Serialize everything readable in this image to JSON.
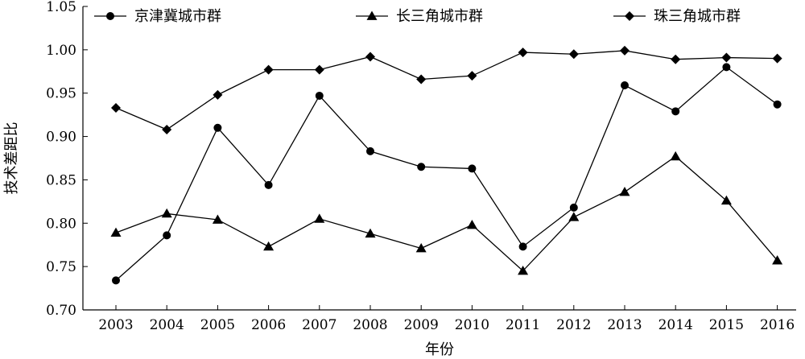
{
  "chart_data": {
    "type": "line",
    "title": "",
    "xlabel": "年份",
    "ylabel": "技术差距比",
    "x": [
      "2003",
      "2004",
      "2005",
      "2006",
      "2007",
      "2008",
      "2009",
      "2010",
      "2011",
      "2012",
      "2013",
      "2014",
      "2015",
      "2016"
    ],
    "ylim": [
      0.7,
      1.05
    ],
    "yticks": [
      "0.70",
      "0.75",
      "0.80",
      "0.85",
      "0.90",
      "0.95",
      "1.00",
      "1.05"
    ],
    "grid": false,
    "legend": "top",
    "series": [
      {
        "name": "京津冀城市群",
        "marker": "circle",
        "values": [
          0.734,
          0.786,
          0.91,
          0.844,
          0.947,
          0.883,
          0.865,
          0.863,
          0.773,
          0.818,
          0.959,
          0.929,
          0.98,
          0.937
        ]
      },
      {
        "name": "长三角城市群",
        "marker": "triangle",
        "values": [
          0.789,
          0.811,
          0.804,
          0.773,
          0.805,
          0.788,
          0.771,
          0.798,
          0.745,
          0.807,
          0.836,
          0.877,
          0.826,
          0.757
        ]
      },
      {
        "name": "珠三角城市群",
        "marker": "diamond",
        "values": [
          0.933,
          0.908,
          0.948,
          0.977,
          0.977,
          0.992,
          0.966,
          0.97,
          0.997,
          0.995,
          0.999,
          0.989,
          0.991,
          0.99
        ]
      }
    ]
  }
}
